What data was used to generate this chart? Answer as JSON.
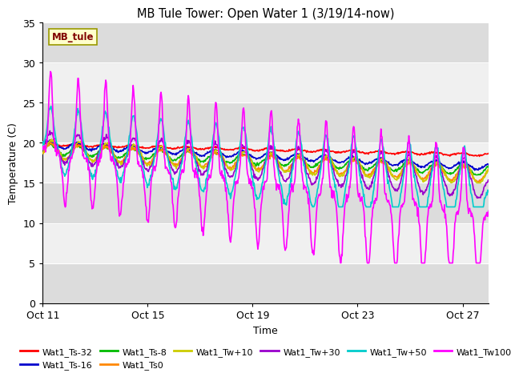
{
  "title": "MB Tule Tower: Open Water 1 (3/19/14-now)",
  "xlabel": "Time",
  "ylabel": "Temperature (C)",
  "ylim": [
    0,
    35
  ],
  "yticks": [
    0,
    5,
    10,
    15,
    20,
    25,
    30,
    35
  ],
  "x_tick_labels": [
    "Oct 11",
    "Oct 15",
    "Oct 19",
    "Oct 23",
    "Oct 27"
  ],
  "x_tick_positions": [
    0,
    4,
    8,
    12,
    16
  ],
  "annotation_label": "MB_tule",
  "background_color": "#ffffff",
  "plot_bg_light": "#f0f0f0",
  "plot_bg_dark": "#dcdcdc",
  "series": [
    {
      "label": "Wat1_Ts-32",
      "color": "#ff0000",
      "lw": 1.2
    },
    {
      "label": "Wat1_Ts-16",
      "color": "#0000cc",
      "lw": 1.2
    },
    {
      "label": "Wat1_Ts-8",
      "color": "#00bb00",
      "lw": 1.2
    },
    {
      "label": "Wat1_Ts0",
      "color": "#ff8800",
      "lw": 1.2
    },
    {
      "label": "Wat1_Tw+10",
      "color": "#cccc00",
      "lw": 1.2
    },
    {
      "label": "Wat1_Tw+30",
      "color": "#9900cc",
      "lw": 1.2
    },
    {
      "label": "Wat1_Tw+50",
      "color": "#00cccc",
      "lw": 1.2
    },
    {
      "label": "Wat1_Tw100",
      "color": "#ff00ff",
      "lw": 1.2
    }
  ]
}
